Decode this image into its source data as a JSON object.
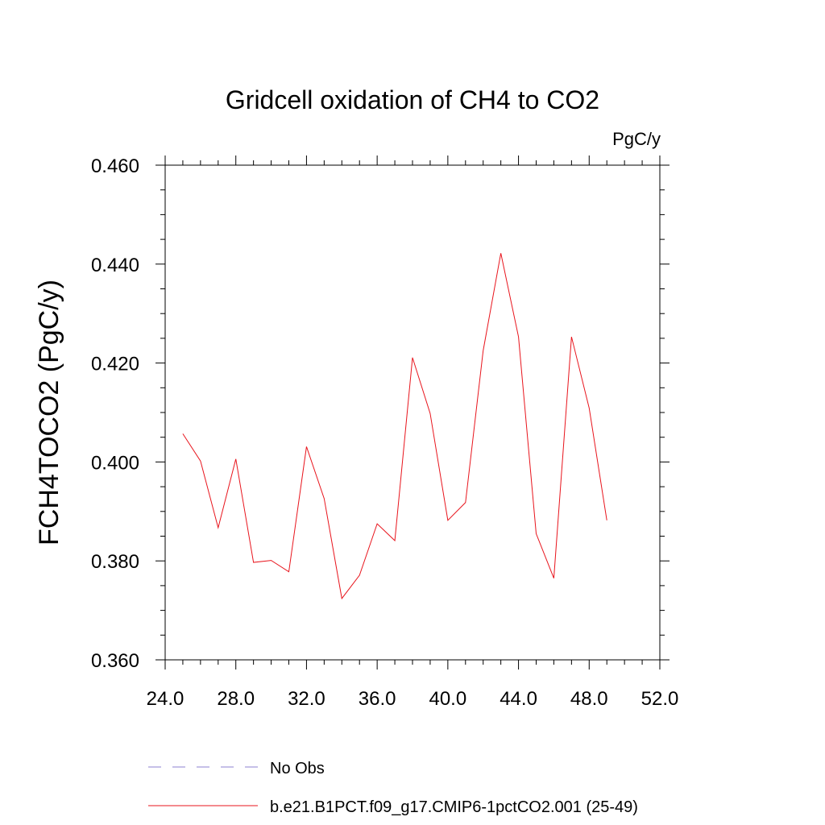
{
  "chart_data": {
    "type": "line",
    "title": "Gridcell oxidation of CH4 to CO2",
    "units_label": "PgC/y",
    "ylabel": "FCH4TOCO2  (PgC/y)",
    "xlabel": "",
    "xlim": [
      24,
      52
    ],
    "ylim": [
      0.36,
      0.46
    ],
    "x_ticks": [
      24,
      28,
      32,
      36,
      40,
      44,
      48,
      52
    ],
    "x_tick_labels": [
      "24.0",
      "28.0",
      "32.0",
      "36.0",
      "40.0",
      "44.0",
      "48.0",
      "52.0"
    ],
    "y_ticks": [
      0.36,
      0.38,
      0.4,
      0.42,
      0.44,
      0.46
    ],
    "y_tick_labels": [
      "0.360",
      "0.380",
      "0.400",
      "0.420",
      "0.440",
      "0.460"
    ],
    "x": [
      25,
      26,
      27,
      28,
      29,
      30,
      31,
      32,
      33,
      34,
      35,
      36,
      37,
      38,
      39,
      40,
      41,
      42,
      43,
      44,
      45,
      46,
      47,
      48,
      49
    ],
    "series": [
      {
        "name": "b.e21.B1PCT.f09_g17.CMIP6-1pctCO2.001 (25-49)",
        "color": "#e8141c",
        "style": "solid",
        "values": [
          0.4057,
          0.4002,
          0.3867,
          0.4006,
          0.3797,
          0.3801,
          0.3778,
          0.4031,
          0.3926,
          0.3724,
          0.3771,
          0.3875,
          0.3841,
          0.4211,
          0.4098,
          0.3882,
          0.3918,
          0.4225,
          0.4422,
          0.4253,
          0.3855,
          0.3765,
          0.4253,
          0.4109,
          0.3882
        ]
      }
    ],
    "legend": [
      {
        "label": "No Obs",
        "color": "#8c82d2",
        "style": "dashed"
      },
      {
        "label": "b.e21.B1PCT.f09_g17.CMIP6-1pctCO2.001 (25-49)",
        "color": "#e8141c",
        "style": "solid"
      }
    ],
    "legend_position": "bottom"
  }
}
